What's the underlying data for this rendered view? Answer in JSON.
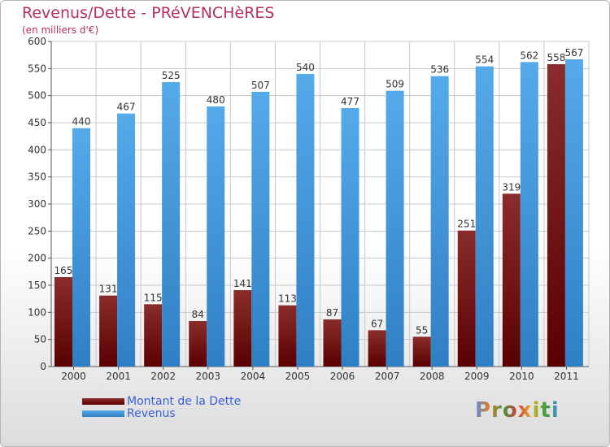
{
  "title": "Revenus/Dette - PRéVENCHèRES",
  "subtitle": "(en milliers d'€)",
  "logo": {
    "text": "Proxiti",
    "letter_colors": [
      "#4f8fe0",
      "#e07b2a",
      "#3f9b3c",
      "#d23a3a",
      "#e0b520",
      "#3f9b3c",
      "#4f8fe0"
    ]
  },
  "chart_data": {
    "type": "bar",
    "categories": [
      "2000",
      "2001",
      "2002",
      "2003",
      "2004",
      "2005",
      "2006",
      "2007",
      "2008",
      "2009",
      "2010",
      "2011"
    ],
    "series": [
      {
        "name": "Montant de la Dette",
        "values": [
          165,
          131,
          115,
          84,
          141,
          113,
          87,
          67,
          55,
          251,
          319,
          558
        ],
        "color_top": "#8a2c2c",
        "color_bottom": "#5a0000"
      },
      {
        "name": "Revenus",
        "values": [
          440,
          467,
          525,
          480,
          507,
          540,
          477,
          509,
          536,
          554,
          562,
          567
        ],
        "color_top": "#55aaea",
        "color_bottom": "#2f7fc4"
      }
    ],
    "ylim": [
      0,
      600
    ],
    "yticks": [
      0,
      50,
      100,
      150,
      200,
      250,
      300,
      350,
      400,
      450,
      500,
      550,
      600
    ],
    "grid": true,
    "legend": "bottom-left"
  }
}
